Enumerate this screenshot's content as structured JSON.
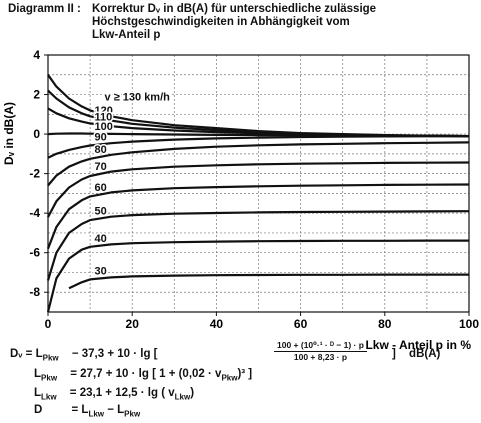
{
  "header": {
    "label": "Diagramm II :",
    "title_lines": [
      "Korrektur Dᵥ in dB(A) für unterschiedliche zulässige",
      "Höchstgeschwindigkeiten in Abhängigkeit vom",
      "Lkw-Anteil p"
    ]
  },
  "chart_data": {
    "type": "line",
    "title": "Korrektur Dᵥ in dB(A) für unterschiedliche zulässige Höchstgeschwindigkeiten in Abhängigkeit vom Lkw-Anteil p",
    "xlabel": "Lkw - Anteil p in %",
    "ylabel": "Dᵥ in dB(A)",
    "xlim": [
      0,
      100
    ],
    "ylim": [
      -9,
      4
    ],
    "x_ticks": [
      0,
      20,
      40,
      60,
      80,
      100
    ],
    "y_ticks": [
      4,
      2,
      0,
      -2,
      -4,
      -6,
      -8
    ],
    "x_tick_labels": [
      "0",
      "20",
      "40",
      "60",
      "80",
      "100"
    ],
    "y_tick_labels": [
      "4",
      "2",
      "0",
      "-2",
      "-4",
      "-6",
      "-8"
    ],
    "grid": true,
    "x": [
      0,
      2,
      5,
      8,
      10,
      15,
      20,
      30,
      40,
      50,
      60,
      70,
      80,
      90,
      100
    ],
    "series": [
      {
        "name": "v ≥ 130 km/h",
        "values": [
          3.0,
          2.4,
          1.8,
          1.4,
          1.2,
          0.9,
          0.7,
          0.45,
          0.3,
          0.15,
          0.05,
          0.0,
          -0.05,
          -0.08,
          -0.1
        ]
      },
      {
        "name": "120",
        "values": [
          2.2,
          1.8,
          1.35,
          1.05,
          0.9,
          0.68,
          0.52,
          0.33,
          0.2,
          0.1,
          0.03,
          -0.02,
          -0.06,
          -0.08,
          -0.1
        ]
      },
      {
        "name": "110",
        "values": [
          1.3,
          1.05,
          0.8,
          0.63,
          0.54,
          0.4,
          0.3,
          0.18,
          0.1,
          0.04,
          -0.01,
          -0.04,
          -0.07,
          -0.09,
          -0.1
        ]
      },
      {
        "name": "100",
        "values": [
          0.0,
          0.02,
          0.03,
          0.03,
          0.02,
          0.01,
          0.0,
          -0.02,
          -0.04,
          -0.05,
          -0.06,
          -0.07,
          -0.08,
          -0.09,
          -0.1
        ]
      },
      {
        "name": "90",
        "values": [
          -1.2,
          -1.0,
          -0.8,
          -0.66,
          -0.58,
          -0.46,
          -0.38,
          -0.28,
          -0.22,
          -0.18,
          -0.15,
          -0.13,
          -0.12,
          -0.11,
          -0.1
        ]
      },
      {
        "name": "80",
        "values": [
          -2.6,
          -2.1,
          -1.65,
          -1.38,
          -1.25,
          -1.05,
          -0.92,
          -0.75,
          -0.64,
          -0.57,
          -0.52,
          -0.49,
          -0.46,
          -0.44,
          -0.42
        ]
      },
      {
        "name": "70",
        "values": [
          -4.2,
          -3.4,
          -2.7,
          -2.3,
          -2.12,
          -1.9,
          -1.78,
          -1.65,
          -1.58,
          -1.53,
          -1.5,
          -1.48,
          -1.46,
          -1.45,
          -1.44
        ]
      },
      {
        "name": "60",
        "values": [
          -5.8,
          -4.7,
          -3.8,
          -3.35,
          -3.15,
          -2.95,
          -2.85,
          -2.74,
          -2.68,
          -2.64,
          -2.61,
          -2.59,
          -2.57,
          -2.56,
          -2.55
        ]
      },
      {
        "name": "50",
        "values": [
          -7.4,
          -6.0,
          -5.0,
          -4.55,
          -4.35,
          -4.18,
          -4.1,
          -4.03,
          -3.99,
          -3.96,
          -3.94,
          -3.93,
          -3.92,
          -3.91,
          -3.9
        ]
      },
      {
        "name": "40",
        "values": [
          -9.0,
          -7.3,
          -6.3,
          -5.85,
          -5.7,
          -5.58,
          -5.52,
          -5.47,
          -5.44,
          -5.42,
          -5.41,
          -5.4,
          -5.4,
          -5.39,
          -5.39
        ]
      },
      {
        "name": "30",
        "values": [
          null,
          null,
          -7.8,
          -7.5,
          -7.35,
          -7.25,
          -7.2,
          -7.16,
          -7.14,
          -7.13,
          -7.12,
          -7.12,
          -7.11,
          -7.11,
          -7.11
        ]
      }
    ],
    "annotations": [
      {
        "series": "v ≥ 130 km/h",
        "text": "v ≥ 130 km/h"
      },
      {
        "series": "120",
        "text": "120"
      },
      {
        "series": "110",
        "text": "110"
      },
      {
        "series": "100",
        "text": "100"
      },
      {
        "series": "90",
        "text": "90"
      },
      {
        "series": "80",
        "text": "80"
      },
      {
        "series": "70",
        "text": "70"
      },
      {
        "series": "60",
        "text": "60"
      },
      {
        "series": "50",
        "text": "50"
      },
      {
        "series": "40",
        "text": "40"
      },
      {
        "series": "30",
        "text": "30"
      }
    ]
  },
  "formulas": {
    "dv_lhs": "Dᵥ = L",
    "dv_lhs_sub": "Pkw",
    "dv_const": "−  37,3 + 10 · lg [",
    "dv_numerator": "100 + (10⁰·¹ · ᴰ − 1) · p",
    "dv_denominator": "100 + 8,23 · p",
    "dv_close": "]",
    "dv_unit": "dB(A)",
    "lpkw_lhs": "L",
    "lpkw_lhs_sub": "Pkw",
    "lpkw_rhs": "=  27,7 + 10 · lg [ 1 + (0,02 · v",
    "lpkw_rhs_sub": "Pkw",
    "lpkw_rhs_end": ")³ ]",
    "llkw_lhs": "L",
    "llkw_lhs_sub": "Lkw",
    "llkw_rhs": "=  23,1 + 12,5 · lg ( v",
    "llkw_rhs_sub": "Lkw",
    "llkw_rhs_end": ")",
    "d_lhs": "D",
    "d_rhs": "=  L",
    "d_rhs_sub1": "Lkw",
    "d_rhs_mid": "−  L",
    "d_rhs_sub2": "Pkw"
  }
}
